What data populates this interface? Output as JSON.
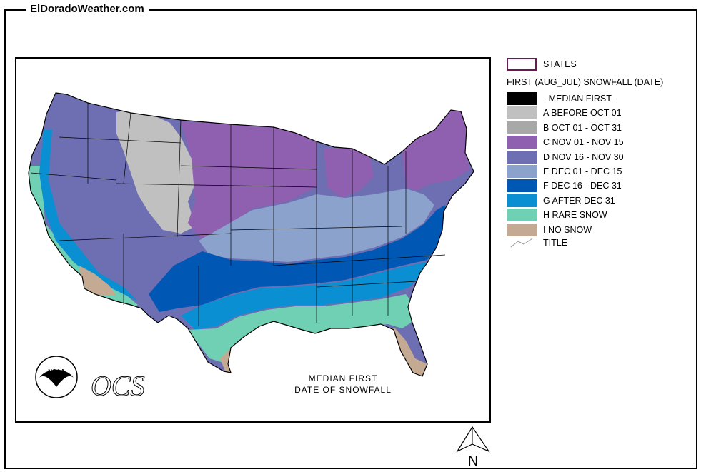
{
  "header": {
    "site_title": "ElDoradoWeather.com"
  },
  "map": {
    "caption_line1": "MEDIAN FIRST",
    "caption_line2": "DATE OF SNOWFALL",
    "ocs_text": "OCS",
    "noaa_text": "NOAA"
  },
  "legend": {
    "states_label": "STATES",
    "heading": "FIRST (AUG_JUL) SNOWFALL (DATE)",
    "title_label": "TITLE",
    "items": [
      {
        "label": "- MEDIAN FIRST -",
        "color": "#000000"
      },
      {
        "label": "A BEFORE OCT 01",
        "color": "#c0c0c0"
      },
      {
        "label": "B OCT 01 - OCT 31",
        "color": "#a8a8a8"
      },
      {
        "label": "C NOV 01 - NOV 15",
        "color": "#9060b0"
      },
      {
        "label": "D NOV 16 - NOV 30",
        "color": "#6e6eb2"
      },
      {
        "label": "E DEC 01 - DEC 15",
        "color": "#8aa2cc"
      },
      {
        "label": "F DEC 16 - DEC 31",
        "color": "#0058b4"
      },
      {
        "label": "G AFTER DEC 31",
        "color": "#0a90d2"
      },
      {
        "label": "H RARE SNOW",
        "color": "#70d0b4"
      },
      {
        "label": "I NO SNOW",
        "color": "#c4aa92"
      }
    ],
    "states_swatch_border": "#6a1a50"
  },
  "north_arrow": {
    "label": "N"
  }
}
